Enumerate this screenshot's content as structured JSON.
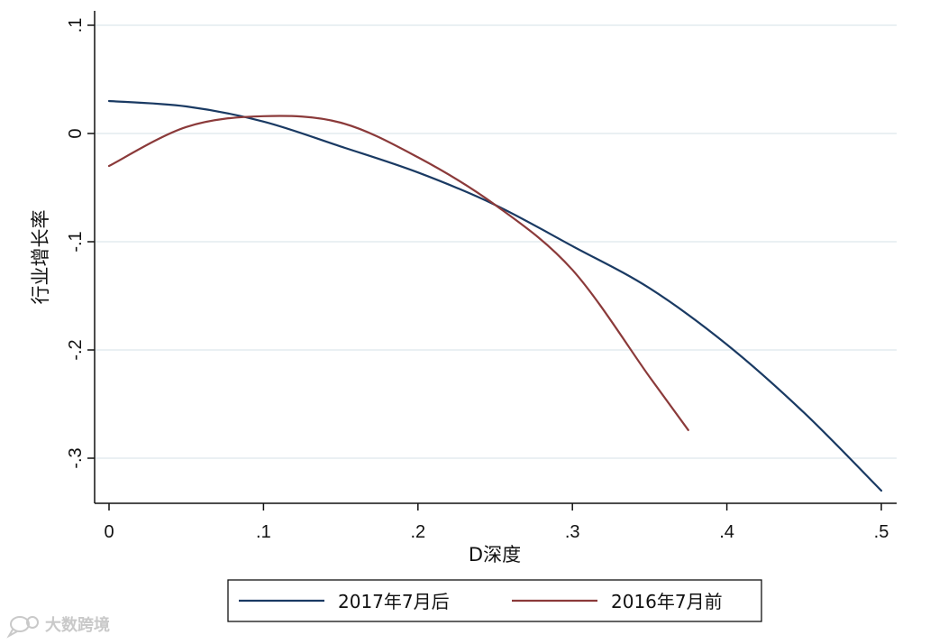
{
  "chart_data": {
    "type": "line",
    "xlabel": "D深度",
    "ylabel": "行业增长率",
    "xlim": [
      0,
      0.5
    ],
    "ylim": [
      -0.33,
      0.1
    ],
    "x_ticks": [
      {
        "value": 0,
        "label": "0"
      },
      {
        "value": 0.1,
        "label": ".1"
      },
      {
        "value": 0.2,
        "label": ".2"
      },
      {
        "value": 0.3,
        "label": ".3"
      },
      {
        "value": 0.4,
        "label": ".4"
      },
      {
        "value": 0.5,
        "label": ".5"
      }
    ],
    "y_ticks": [
      {
        "value": 0.1,
        "label": ".1"
      },
      {
        "value": 0,
        "label": "0"
      },
      {
        "value": -0.1,
        "label": "-.1"
      },
      {
        "value": -0.2,
        "label": "-.2"
      },
      {
        "value": -0.3,
        "label": "-.3"
      }
    ],
    "grid": "horizontal",
    "legend_position": "bottom",
    "series": [
      {
        "name": "2017年7月后",
        "color": "#1a3a63",
        "x": [
          0,
          0.05,
          0.1,
          0.15,
          0.2,
          0.25,
          0.3,
          0.35,
          0.4,
          0.45,
          0.5
        ],
        "y": [
          0.03,
          0.025,
          0.011,
          -0.012,
          -0.036,
          -0.066,
          -0.104,
          -0.143,
          -0.195,
          -0.258,
          -0.33
        ]
      },
      {
        "name": "2016年7月前",
        "color": "#8b3a3a",
        "x": [
          0,
          0.05,
          0.1,
          0.15,
          0.2,
          0.25,
          0.3,
          0.35,
          0.375
        ],
        "y": [
          -0.03,
          0.006,
          0.016,
          0.01,
          -0.022,
          -0.066,
          -0.126,
          -0.225,
          -0.274
        ]
      }
    ]
  },
  "watermark": {
    "text": "大数跨境",
    "icon": "speech-bubble-logo"
  }
}
